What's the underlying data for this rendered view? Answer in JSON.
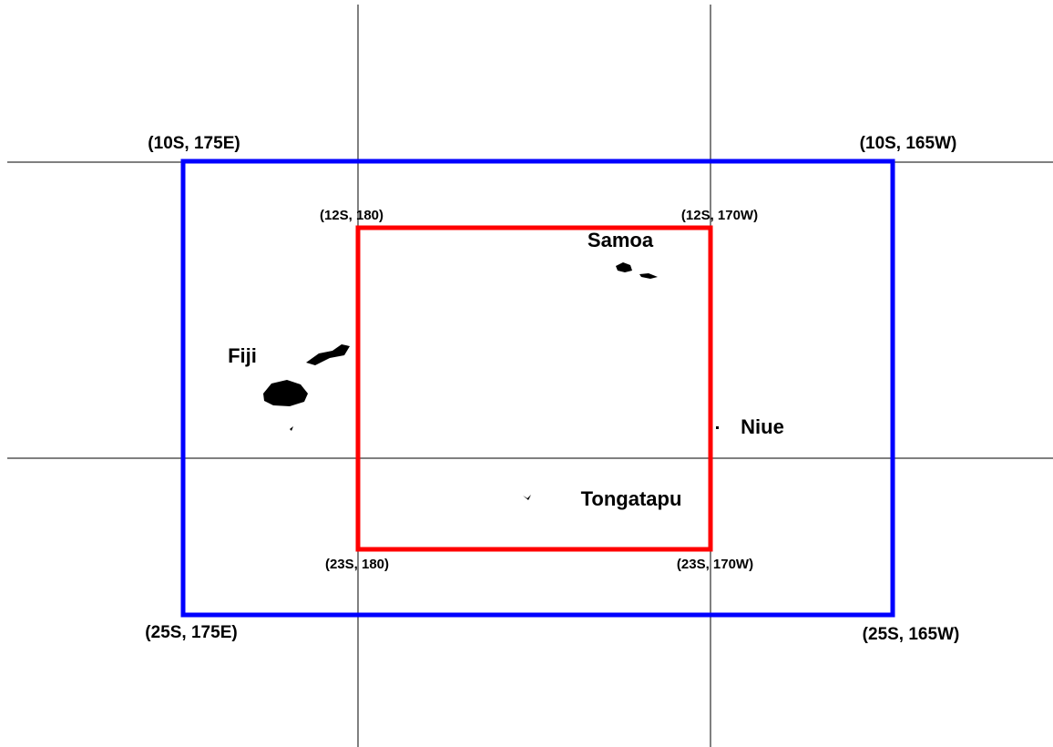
{
  "outer_box": {
    "top_left": "(10S, 175E)",
    "top_right": "(10S, 165W)",
    "bottom_left": "(25S, 175E)",
    "bottom_right": "(25S, 165W)"
  },
  "inner_box": {
    "top_left": "(12S, 180)",
    "top_right": "(12S, 170W)",
    "bottom_left": "(23S, 180)",
    "bottom_right": "(23S, 170W)"
  },
  "places": [
    "Samoa",
    "Fiji",
    "Niue",
    "Tongatapu"
  ]
}
